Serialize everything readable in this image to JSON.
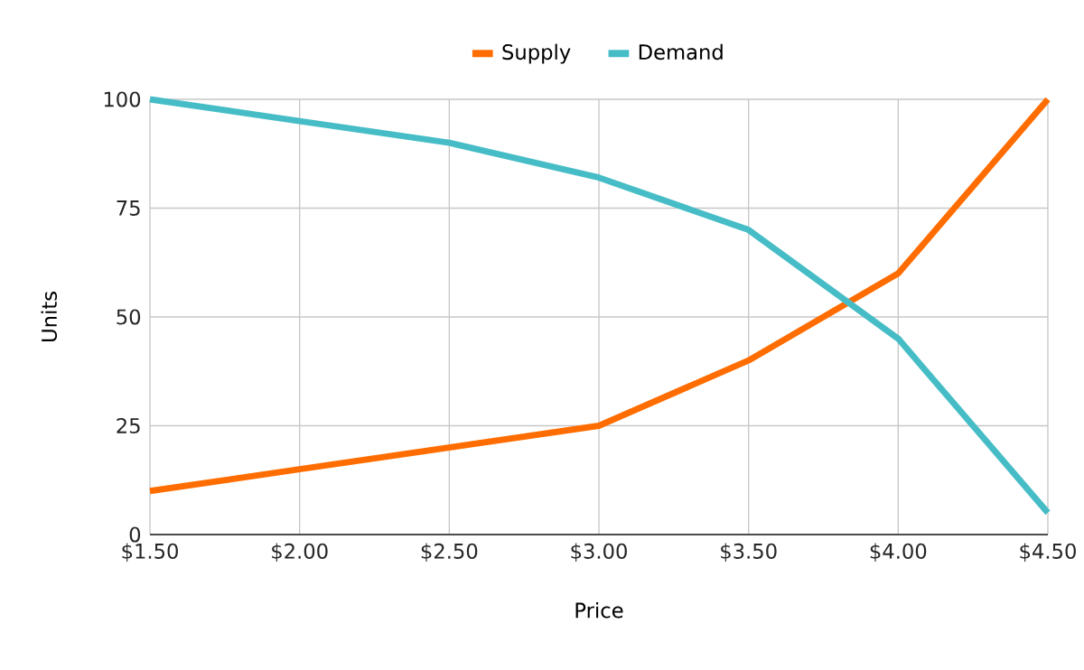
{
  "chart_data": {
    "type": "line",
    "xlabel": "Price",
    "ylabel": "Units",
    "x": [
      1.5,
      2.0,
      2.5,
      3.0,
      3.5,
      4.0,
      4.5
    ],
    "series": [
      {
        "name": "Supply",
        "color": "#ff6d01",
        "values": [
          10,
          15,
          20,
          25,
          40,
          60,
          100
        ]
      },
      {
        "name": "Demand",
        "color": "#46bdc6",
        "values": [
          100,
          95,
          90,
          82,
          70,
          45,
          5
        ]
      }
    ],
    "xlim": [
      1.5,
      4.5
    ],
    "xticks": [
      {
        "value": 1.5,
        "label": "$1.50"
      },
      {
        "value": 2.0,
        "label": "$2.00"
      },
      {
        "value": 2.5,
        "label": "$2.50"
      },
      {
        "value": 3.0,
        "label": "$3.00"
      },
      {
        "value": 3.5,
        "label": "$3.50"
      },
      {
        "value": 4.0,
        "label": "$4.00"
      },
      {
        "value": 4.5,
        "label": "$4.50"
      }
    ],
    "ylim": [
      0,
      100
    ],
    "yticks": [
      0,
      25,
      50,
      75,
      100
    ],
    "grid": true,
    "legend": "top",
    "marker": "none",
    "line_style": "solid"
  }
}
